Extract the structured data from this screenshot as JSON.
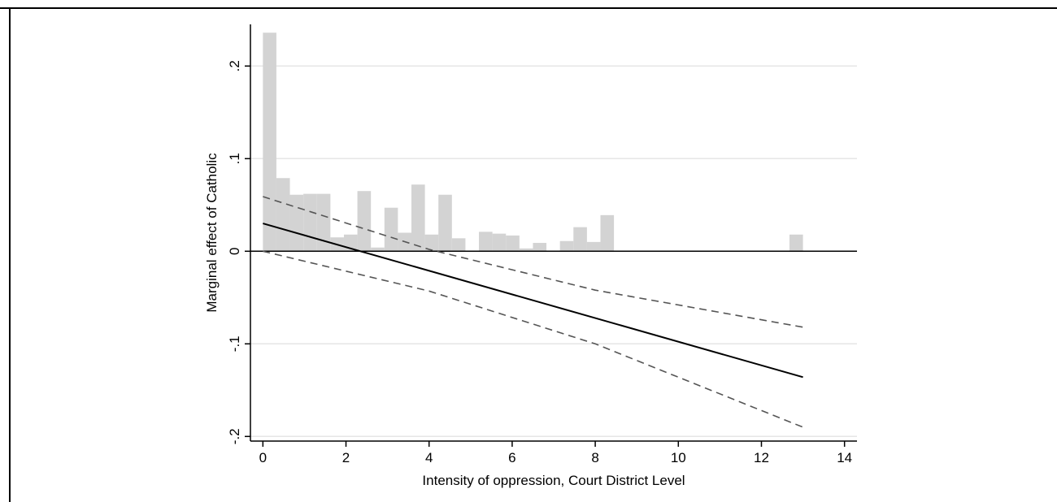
{
  "chart_data": {
    "type": "line",
    "title": "",
    "xlabel": "Intensity of oppression, Court District Level",
    "ylabel": "Marginal effect of Catholic",
    "xlim": [
      -0.3,
      14.3
    ],
    "ylim": [
      -0.205,
      0.245
    ],
    "x_ticks": [
      0,
      2,
      4,
      6,
      8,
      10,
      12,
      14
    ],
    "x_tick_labels": [
      "0",
      "2",
      "4",
      "6",
      "8",
      "10",
      "12",
      "14"
    ],
    "y_ticks": [
      0.2,
      0.1,
      0,
      -0.1,
      -0.2
    ],
    "y_tick_labels": [
      ".2",
      ".1",
      "0",
      "-.1",
      "-.2"
    ],
    "grid": "horizontal",
    "reference_line_y": 0,
    "series": [
      {
        "style": "solid",
        "color": "#000000",
        "x": [
          0,
          13
        ],
        "y": [
          0.03,
          -0.136
        ]
      },
      {
        "style": "dashed",
        "color": "#555555",
        "x": [
          0,
          4,
          8,
          13
        ],
        "y": [
          0.059,
          0.002,
          -0.042,
          -0.082
        ]
      },
      {
        "style": "dashed",
        "color": "#555555",
        "x": [
          0,
          4,
          8,
          13
        ],
        "y": [
          0.0,
          -0.043,
          -0.1,
          -0.19
        ]
      }
    ],
    "histogram": {
      "color": "#d3d3d3",
      "bin_width": 0.325,
      "bins": [
        {
          "x": 0.0,
          "h": 0.236
        },
        {
          "x": 0.325,
          "h": 0.079
        },
        {
          "x": 0.65,
          "h": 0.061
        },
        {
          "x": 0.975,
          "h": 0.062
        },
        {
          "x": 1.3,
          "h": 0.062
        },
        {
          "x": 1.625,
          "h": 0.015
        },
        {
          "x": 1.95,
          "h": 0.018
        },
        {
          "x": 2.275,
          "h": 0.065
        },
        {
          "x": 2.6,
          "h": 0.004
        },
        {
          "x": 2.925,
          "h": 0.047
        },
        {
          "x": 3.25,
          "h": 0.02
        },
        {
          "x": 3.575,
          "h": 0.072
        },
        {
          "x": 3.9,
          "h": 0.018
        },
        {
          "x": 4.225,
          "h": 0.061
        },
        {
          "x": 4.55,
          "h": 0.014
        },
        {
          "x": 5.2,
          "h": 0.021
        },
        {
          "x": 5.525,
          "h": 0.019
        },
        {
          "x": 5.85,
          "h": 0.017
        },
        {
          "x": 6.175,
          "h": 0.003
        },
        {
          "x": 6.5,
          "h": 0.009
        },
        {
          "x": 7.15,
          "h": 0.011
        },
        {
          "x": 7.475,
          "h": 0.026
        },
        {
          "x": 7.8,
          "h": 0.01
        },
        {
          "x": 8.125,
          "h": 0.039
        },
        {
          "x": 12.675,
          "h": 0.018
        }
      ]
    }
  }
}
